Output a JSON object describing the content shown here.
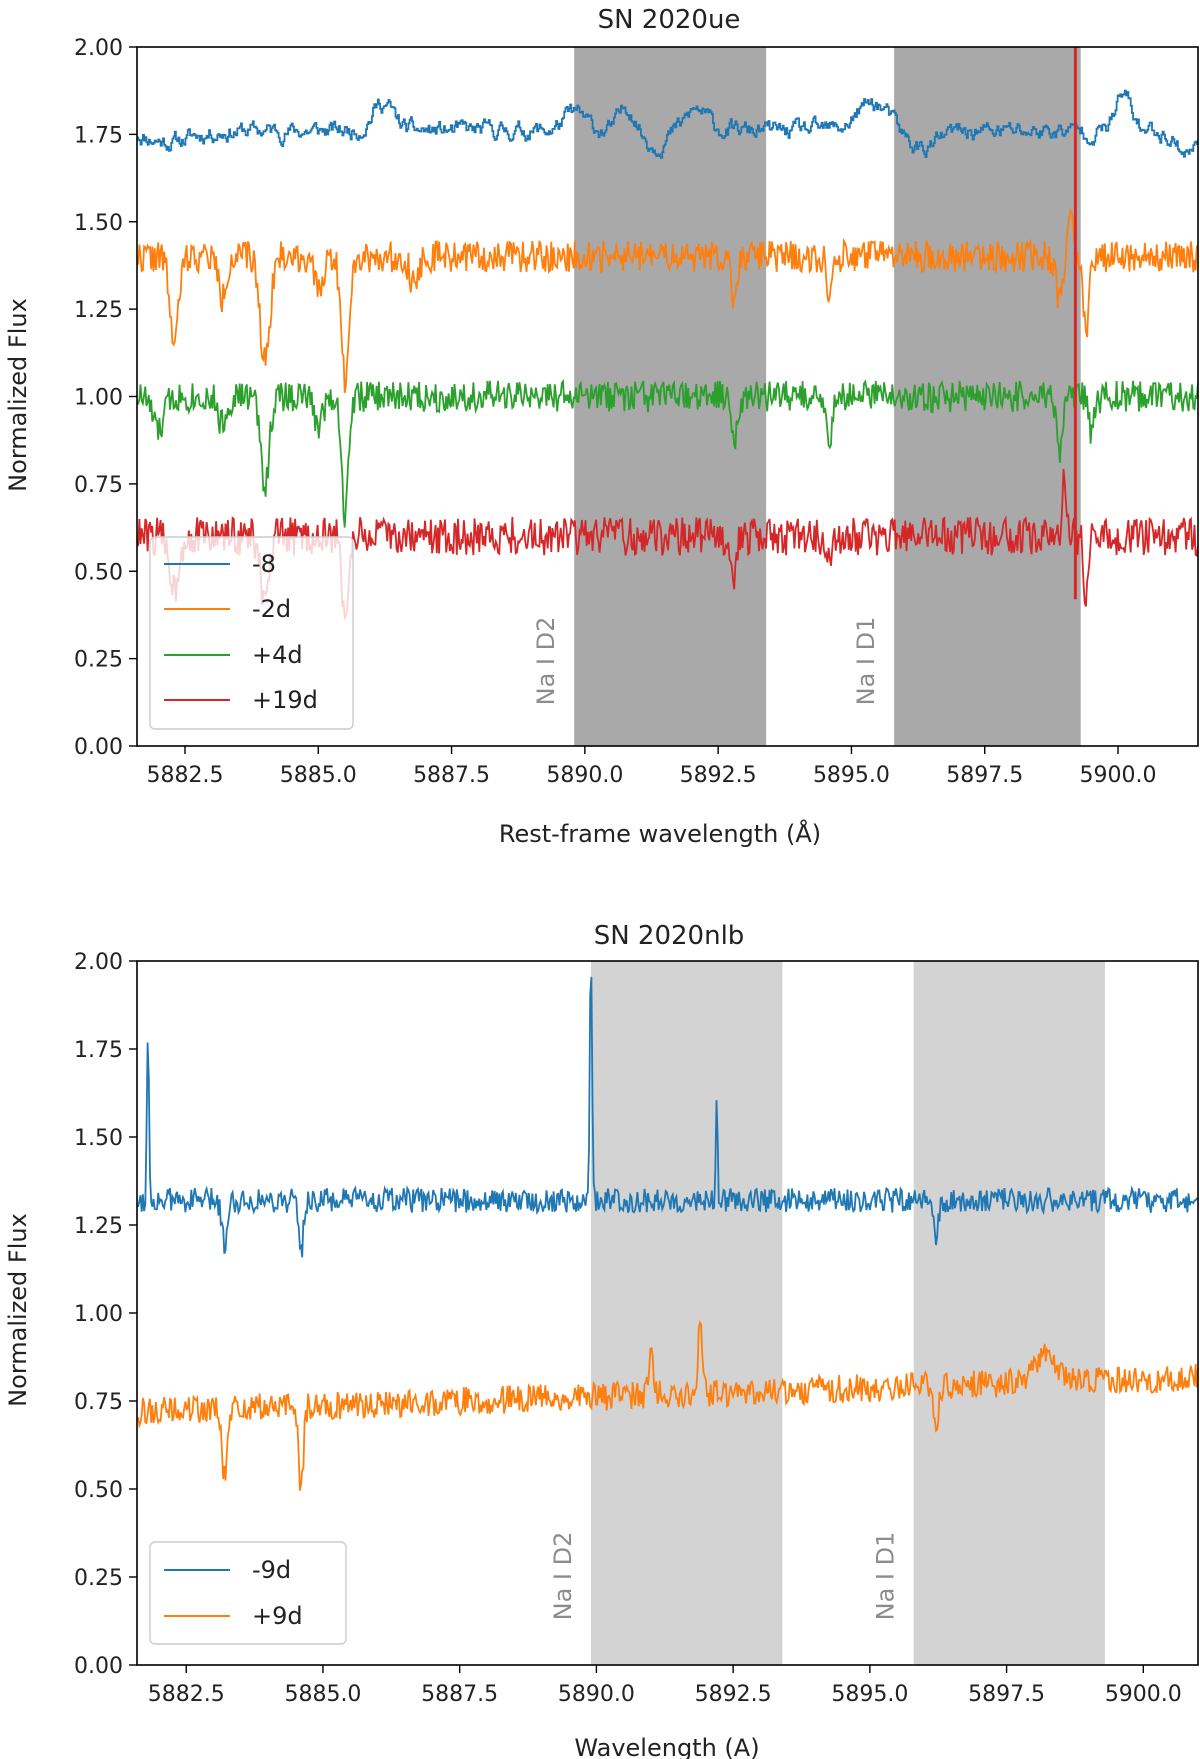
{
  "chart_data": [
    {
      "type": "line",
      "title": "SN 2020ue",
      "xlabel": "Rest-frame wavelength (Å)",
      "ylabel": "Normalized Flux",
      "xlim": [
        5881.6,
        5901.5
      ],
      "ylim": [
        0.0,
        2.0
      ],
      "xticks": [
        5882.5,
        5885.0,
        5887.5,
        5890.0,
        5892.5,
        5895.0,
        5897.5,
        5900.0
      ],
      "xtick_labels": [
        "5882.5",
        "5885.0",
        "5887.5",
        "5890.0",
        "5892.5",
        "5895.0",
        "5897.5",
        "5900.0"
      ],
      "yticks": [
        0.0,
        0.25,
        0.5,
        0.75,
        1.0,
        1.25,
        1.5,
        1.75,
        2.0
      ],
      "ytick_labels": [
        "0.00",
        "0.25",
        "0.50",
        "0.75",
        "1.00",
        "1.25",
        "1.50",
        "1.75",
        "2.00"
      ],
      "grid": false,
      "legend_position": "lower-left",
      "shaded_regions": [
        {
          "label": "Na I D2",
          "x": [
            5889.8,
            5893.4
          ],
          "color": "#a9a9a9"
        },
        {
          "label": "Na I D1",
          "x": [
            5895.8,
            5899.3
          ],
          "color": "#a9a9a9"
        }
      ],
      "series": [
        {
          "name": "-8",
          "color": "#1f77b4",
          "style": "steps",
          "baseline": 1.76,
          "noise": 0.035,
          "seed": 11,
          "features": [
            [
              5882.2,
              -0.03,
              0.4
            ],
            [
              5886.2,
              0.08,
              0.2
            ],
            [
              5889.8,
              0.05,
              0.2
            ],
            [
              5890.8,
              0.07,
              0.15
            ],
            [
              5891.3,
              -0.04,
              0.2
            ],
            [
              5892.1,
              0.06,
              0.2
            ],
            [
              5895.4,
              0.08,
              0.3
            ],
            [
              5896.3,
              -0.05,
              0.3
            ],
            [
              5900.1,
              0.1,
              0.15
            ],
            [
              5901.3,
              -0.06,
              0.2
            ]
          ]
        },
        {
          "name": "-2d",
          "color": "#ff7f0e",
          "style": "line",
          "baseline": 1.4,
          "noise": 0.045,
          "seed": 22,
          "features": [
            [
              5882.3,
              -0.25,
              0.08
            ],
            [
              5883.2,
              -0.12,
              0.07
            ],
            [
              5884.0,
              -0.3,
              0.09
            ],
            [
              5885.5,
              -0.35,
              0.07
            ],
            [
              5885.0,
              -0.1,
              0.08
            ],
            [
              5886.8,
              -0.08,
              0.08
            ],
            [
              5892.8,
              -0.12,
              0.05
            ],
            [
              5894.6,
              -0.12,
              0.05
            ],
            [
              5898.9,
              -0.12,
              0.06
            ],
            [
              5899.1,
              0.15,
              0.05
            ],
            [
              5899.4,
              -0.2,
              0.05
            ]
          ]
        },
        {
          "name": "+4d",
          "color": "#2ca02c",
          "style": "line",
          "baseline": 1.0,
          "noise": 0.045,
          "seed": 33,
          "features": [
            [
              5882.0,
              -0.1,
              0.1
            ],
            [
              5883.2,
              -0.08,
              0.08
            ],
            [
              5884.0,
              -0.25,
              0.08
            ],
            [
              5885.5,
              -0.35,
              0.06
            ],
            [
              5885.0,
              -0.08,
              0.08
            ],
            [
              5892.8,
              -0.12,
              0.05
            ],
            [
              5894.6,
              -0.12,
              0.05
            ],
            [
              5898.9,
              -0.15,
              0.05
            ],
            [
              5899.5,
              -0.1,
              0.06
            ]
          ]
        },
        {
          "name": "+19d",
          "color": "#d62728",
          "style": "line",
          "baseline": 0.6,
          "noise": 0.055,
          "seed": 44,
          "features": [
            [
              5882.3,
              -0.15,
              0.08
            ],
            [
              5884.0,
              -0.2,
              0.08
            ],
            [
              5885.5,
              -0.22,
              0.06
            ],
            [
              5892.8,
              -0.1,
              0.05
            ],
            [
              5894.6,
              -0.1,
              0.05
            ],
            [
              5899.0,
              0.2,
              0.03
            ],
            [
              5899.4,
              -0.2,
              0.04
            ]
          ]
        }
      ],
      "spike": {
        "x": 5899.2,
        "y": [
          0.42,
          2.0
        ],
        "color": "#d62728"
      }
    },
    {
      "type": "line",
      "title": "SN 2020nlb",
      "xlabel": "Wavelength (A)",
      "ylabel": "Normalized Flux",
      "xlim": [
        5881.6,
        5901.0
      ],
      "ylim": [
        0.0,
        2.0
      ],
      "xticks": [
        5882.5,
        5885.0,
        5887.5,
        5890.0,
        5892.5,
        5895.0,
        5897.5,
        5900.0
      ],
      "xtick_labels": [
        "5882.5",
        "5885.0",
        "5887.5",
        "5890.0",
        "5892.5",
        "5895.0",
        "5897.5",
        "5900.0"
      ],
      "yticks": [
        0.0,
        0.25,
        0.5,
        0.75,
        1.0,
        1.25,
        1.5,
        1.75,
        2.0
      ],
      "ytick_labels": [
        "0.00",
        "0.25",
        "0.50",
        "0.75",
        "1.00",
        "1.25",
        "1.50",
        "1.75",
        "2.00"
      ],
      "grid": false,
      "legend_position": "lower-left",
      "shaded_regions": [
        {
          "label": "Na I D2",
          "x": [
            5889.9,
            5893.4
          ],
          "color": "#d3d3d3"
        },
        {
          "label": "Na I D1",
          "x": [
            5895.8,
            5899.3
          ],
          "color": "#d3d3d3"
        }
      ],
      "series": [
        {
          "name": "-9d",
          "color": "#1f77b4",
          "style": "line",
          "baseline": 1.32,
          "noise": 0.035,
          "seed": 55,
          "features": [
            [
              5881.8,
              0.45,
              0.02
            ],
            [
              5883.2,
              -0.12,
              0.05
            ],
            [
              5884.6,
              -0.15,
              0.04
            ],
            [
              5889.9,
              0.7,
              0.02
            ],
            [
              5892.2,
              0.4,
              0.02
            ],
            [
              5892.2,
              -0.12,
              0.03
            ],
            [
              5896.2,
              -0.1,
              0.05
            ]
          ]
        },
        {
          "name": "+9d",
          "color": "#ff7f0e",
          "style": "line",
          "baseline": 0.72,
          "slope": 0.005,
          "noise": 0.04,
          "seed": 66,
          "features": [
            [
              5883.2,
              -0.2,
              0.05
            ],
            [
              5884.6,
              -0.25,
              0.04
            ],
            [
              5891.0,
              0.1,
              0.05
            ],
            [
              5891.9,
              0.2,
              0.04
            ],
            [
              5896.2,
              -0.12,
              0.05
            ],
            [
              5898.2,
              0.08,
              0.2
            ]
          ]
        }
      ]
    }
  ]
}
